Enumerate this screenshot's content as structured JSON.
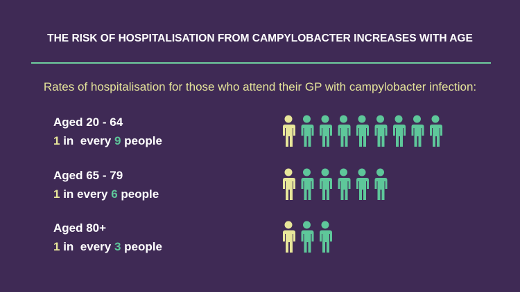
{
  "title": "THE RISK OF HOSPITALISATION FROM CAMPYLOBACTER INCREASES WITH AGE",
  "subtitle": "Rates of hospitalisation for those who attend their GP with campylobacter infection:",
  "rows": [
    {
      "label": "Aged 20 - 64",
      "count": 1,
      "middle": "in  every",
      "total": 9,
      "end": "people"
    },
    {
      "label": "Aged 65 - 79",
      "count": 1,
      "middle": "in every",
      "total": 6,
      "end": "people"
    },
    {
      "label": "Aged 80+",
      "count": 1,
      "middle": "in  every",
      "total": 3,
      "end": "people"
    }
  ]
}
